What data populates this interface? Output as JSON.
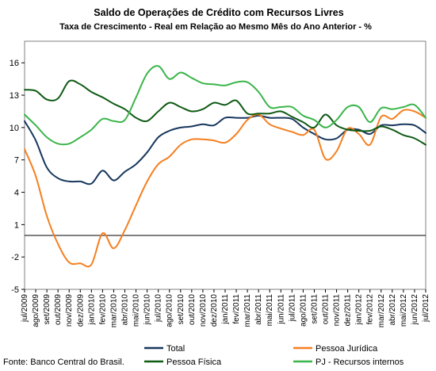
{
  "chart_data": {
    "type": "line",
    "title": "Saldo de Operações de Crédito com Recursos Livres",
    "subtitle": "Taxa de Crescimento - Real em Relação ao Mesmo Mês do Ano Anterior - %",
    "source": "Fonte: Banco Central do Brasil.",
    "ylim": [
      -5,
      18
    ],
    "yticks": [
      -5,
      -2,
      1,
      4,
      7,
      10,
      13,
      16
    ],
    "reference_line": 0,
    "grid": false,
    "legend_position": "bottom",
    "x": [
      "jul/2009",
      "ago/2009",
      "set/2009",
      "out/2009",
      "nov/2009",
      "dez/2009",
      "jan/2010",
      "fev/2010",
      "mar/2010",
      "abr/2010",
      "mai/2010",
      "jun/2010",
      "jul/2010",
      "ago/2010",
      "set/2010",
      "out/2010",
      "nov/2010",
      "dez/2010",
      "jan/2011",
      "fev/2011",
      "mar/2011",
      "abr/2011",
      "mai/2011",
      "jun/2011",
      "jul/2011",
      "ago/2011",
      "set/2011",
      "out/2011",
      "nov/2011",
      "dez/2011",
      "jan/2012",
      "fev/2012",
      "mar/2012",
      "abr/2012",
      "mai/2012",
      "jun/2012",
      "jul/2012"
    ],
    "series": [
      {
        "name": "Total",
        "color": "#17375e",
        "values": [
          10.6,
          8.8,
          6.3,
          5.3,
          5.0,
          5.0,
          4.8,
          6.0,
          5.1,
          5.9,
          6.6,
          7.7,
          9.1,
          9.7,
          10.0,
          10.1,
          10.3,
          10.2,
          10.9,
          10.9,
          10.9,
          11.1,
          10.9,
          10.9,
          10.8,
          10.0,
          9.4,
          8.9,
          9.0,
          9.8,
          9.8,
          9.4,
          10.2,
          10.2,
          10.3,
          10.2,
          9.5
        ]
      },
      {
        "name": "Pessoa Jurídica",
        "color": "#f57f1f",
        "values": [
          8.0,
          5.5,
          1.8,
          -0.8,
          -2.5,
          -2.6,
          -2.7,
          0.2,
          -1.2,
          0.5,
          2.8,
          5.0,
          6.6,
          7.3,
          8.4,
          8.9,
          8.9,
          8.8,
          8.6,
          9.4,
          10.7,
          11.2,
          10.3,
          9.9,
          9.6,
          9.3,
          9.8,
          7.1,
          7.8,
          9.9,
          9.4,
          8.4,
          11.0,
          10.8,
          11.6,
          11.5,
          10.9
        ]
      },
      {
        "name": "Pessoa Física",
        "color": "#0f5a14",
        "values": [
          13.5,
          13.4,
          12.6,
          12.7,
          14.3,
          14.0,
          13.3,
          12.8,
          12.2,
          11.7,
          10.9,
          10.6,
          11.5,
          12.3,
          11.9,
          11.5,
          11.7,
          12.3,
          12.1,
          12.5,
          11.3,
          11.3,
          11.3,
          11.5,
          11.0,
          10.5,
          10.0,
          11.2,
          10.2,
          9.8,
          9.7,
          9.7,
          10.1,
          9.8,
          9.3,
          9.0,
          8.4
        ]
      },
      {
        "name": "PJ - Recursos internos",
        "color": "#3ab54a",
        "values": [
          11.2,
          10.2,
          9.1,
          8.5,
          8.5,
          9.1,
          9.8,
          10.8,
          10.6,
          10.7,
          12.8,
          15.0,
          15.7,
          14.5,
          15.1,
          14.6,
          14.1,
          14.0,
          13.9,
          14.2,
          14.2,
          13.3,
          11.9,
          11.9,
          11.9,
          11.1,
          10.7,
          10.0,
          10.7,
          11.9,
          11.9,
          10.5,
          11.8,
          11.7,
          11.9,
          12.1,
          10.9
        ]
      }
    ]
  }
}
